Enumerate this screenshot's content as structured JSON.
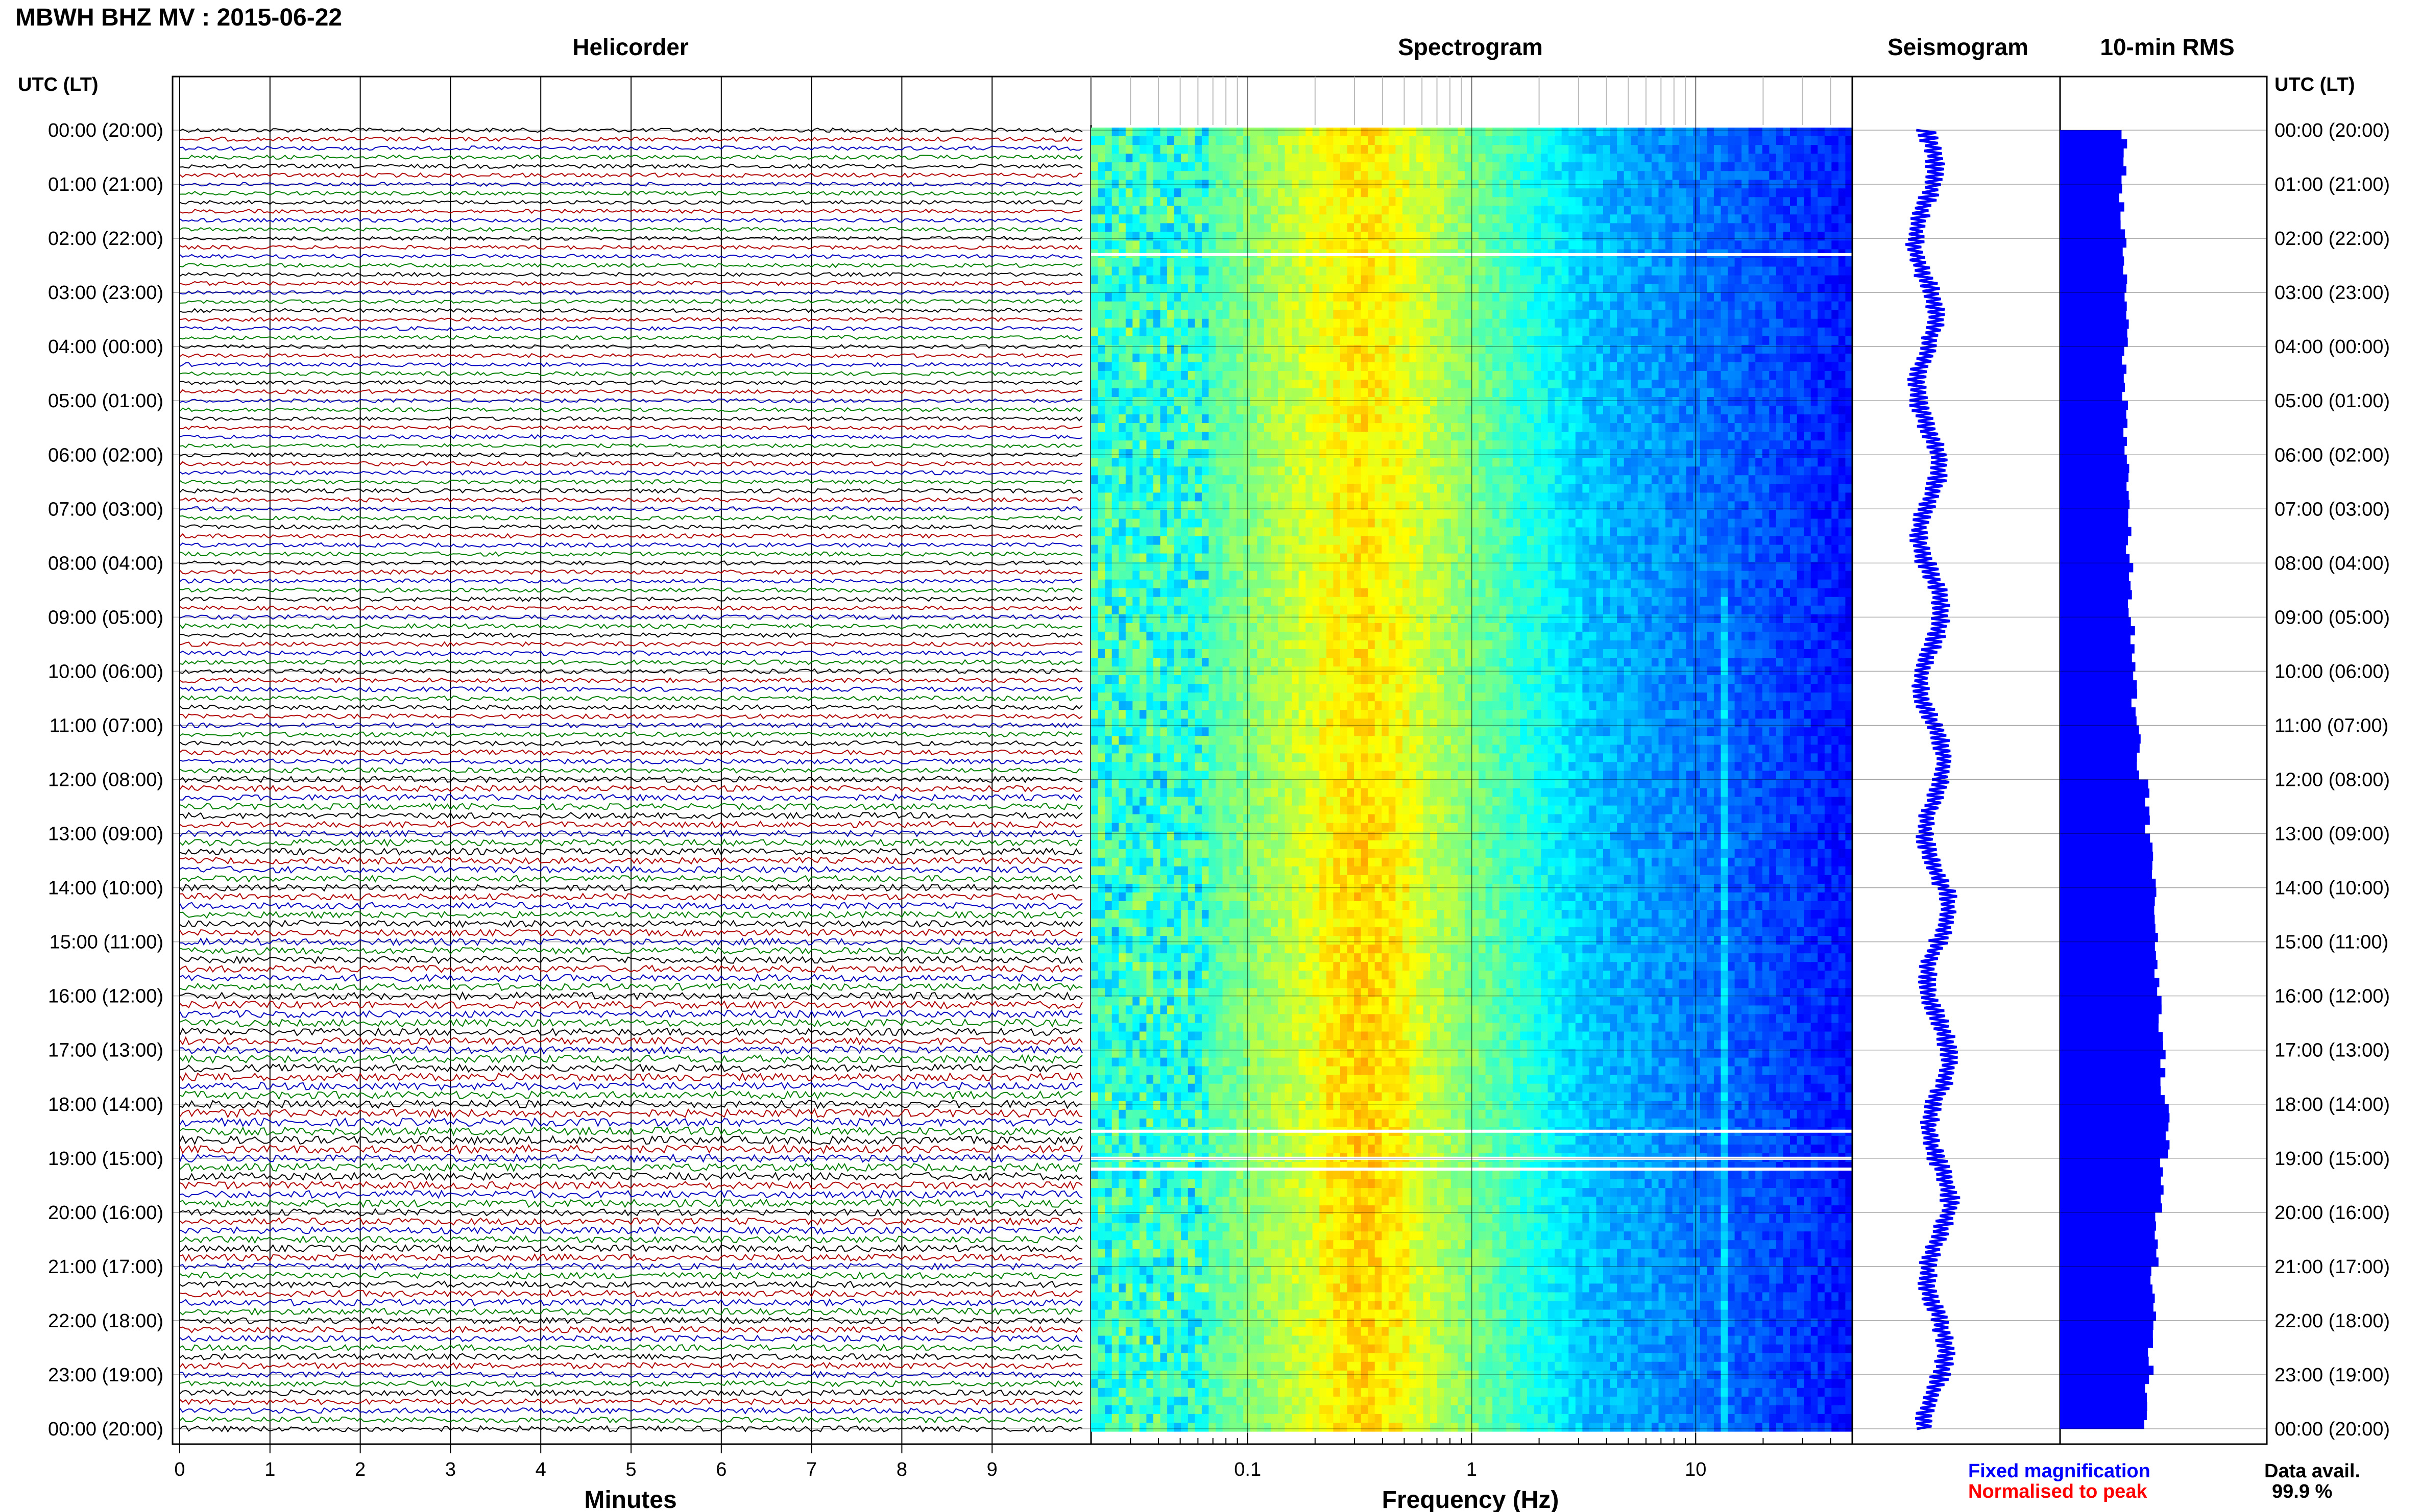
{
  "header": {
    "station_title": "MBWH BHZ MV : 2015-06-22",
    "left_axis_header": "UTC (LT)",
    "right_axis_header": "UTC (LT)"
  },
  "panels": {
    "helicorder_title": "Helicorder",
    "spectrogram_title": "Spectrogram",
    "seismogram_title": "Seismogram",
    "rms_title": "10-min RMS"
  },
  "footer": {
    "minutes_label": "Minutes",
    "frequency_label": "Frequency (Hz)",
    "legend_fixed": "Fixed magnification",
    "legend_normalised": "Normalised to peak",
    "data_avail_label": "Data avail.",
    "data_avail_value": "99.9 %"
  },
  "colors": {
    "trace_palette": [
      "#000000",
      "#b00000",
      "#0000c0",
      "#008000"
    ],
    "seismogram": "#0000ff",
    "rms": "#0000ff",
    "legend_fixed": "#0000ff",
    "legend_normalised": "#ff0000"
  },
  "chart_data": [
    {
      "type": "line",
      "name": "helicorder",
      "xlabel": "Minutes",
      "xlim": [
        0,
        10
      ],
      "x_ticks": [
        "0",
        "1",
        "2",
        "3",
        "4",
        "5",
        "6",
        "7",
        "8",
        "9"
      ],
      "row_labels": [
        "00:00 (20:00)",
        "01:00 (21:00)",
        "02:00 (22:00)",
        "03:00 (23:00)",
        "04:00 (00:00)",
        "05:00 (01:00)",
        "06:00 (02:00)",
        "07:00 (03:00)",
        "08:00 (04:00)",
        "09:00 (05:00)",
        "10:00 (06:00)",
        "11:00 (07:00)",
        "12:00 (08:00)",
        "13:00 (09:00)",
        "14:00 (10:00)",
        "15:00 (11:00)",
        "16:00 (12:00)",
        "17:00 (13:00)",
        "18:00 (14:00)",
        "19:00 (15:00)",
        "20:00 (16:00)",
        "21:00 (17:00)",
        "22:00 (18:00)",
        "23:00 (19:00)",
        "00:00 (20:00)"
      ],
      "rows_per_hour": 6,
      "trace_amplitude_by_hour": [
        0.55,
        0.5,
        0.5,
        0.5,
        0.5,
        0.5,
        0.55,
        0.55,
        0.55,
        0.6,
        0.6,
        0.65,
        0.8,
        0.85,
        0.85,
        0.9,
        0.95,
        1.0,
        1.05,
        1.0,
        0.9,
        0.85,
        0.8,
        0.75
      ]
    },
    {
      "type": "heatmap",
      "name": "spectrogram",
      "xlabel": "Frequency (Hz)",
      "x_scale": "log",
      "xlim": [
        0.02,
        50
      ],
      "x_ticks": [
        "0.1",
        "1",
        "10"
      ],
      "peak_band_hz": [
        0.2,
        0.5
      ],
      "tremor_line_hz": 13,
      "data_gaps_hours": [
        2.3,
        18.5,
        19.0,
        19.2
      ]
    },
    {
      "type": "line",
      "name": "seismogram",
      "description_level_by_hour": [
        0.35,
        0.35,
        0.35,
        0.35,
        0.36,
        0.36,
        0.37,
        0.37,
        0.38,
        0.38,
        0.38,
        0.39,
        0.4,
        0.4,
        0.41,
        0.41,
        0.41,
        0.42,
        0.42,
        0.42,
        0.41,
        0.41,
        0.4,
        0.4
      ]
    },
    {
      "type": "bar",
      "name": "10-min RMS",
      "rms_by_hour": [
        0.31,
        0.3,
        0.31,
        0.32,
        0.31,
        0.32,
        0.33,
        0.33,
        0.34,
        0.35,
        0.36,
        0.38,
        0.42,
        0.45,
        0.46,
        0.47,
        0.49,
        0.5,
        0.52,
        0.49,
        0.47,
        0.45,
        0.44,
        0.42
      ],
      "xlim": [
        0,
        1
      ]
    }
  ]
}
